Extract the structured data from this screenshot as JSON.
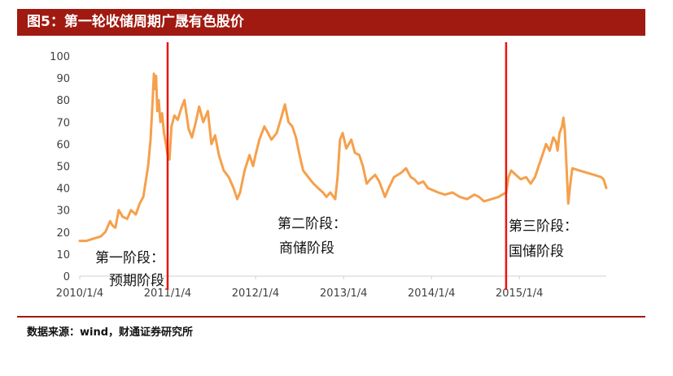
{
  "title": "图5：第一轮收储周期广晟有色股价",
  "source": "数据来源：wind，财通证券研究所",
  "colors": {
    "title_bg": "#a01a11",
    "line": "#f5a04c",
    "divider": "#e8160c"
  },
  "chart_data": {
    "type": "line",
    "title": "",
    "xlabel": "",
    "ylabel": "",
    "ylim": [
      0,
      100
    ],
    "yticks": [
      "0",
      "10",
      "20",
      "30",
      "40",
      "50",
      "60",
      "70",
      "80",
      "90",
      "100"
    ],
    "xticks": [
      "2010/1/4",
      "2011/1/4",
      "2012/1/4",
      "2013/1/4",
      "2014/1/4",
      "2015/1/4"
    ],
    "dividers": [
      "2011-01-04",
      "2014-11-10"
    ],
    "annotations": [
      "第一阶段：",
      "预期阶段",
      "第二阶段：",
      "商储阶段",
      "第三阶段：",
      "国储阶段"
    ],
    "series": [
      {
        "points": [
          [
            "2010-01-04",
            16
          ],
          [
            "2010-02-01",
            16
          ],
          [
            "2010-03-01",
            17
          ],
          [
            "2010-04-01",
            18
          ],
          [
            "2010-04-20",
            20
          ],
          [
            "2010-05-10",
            25
          ],
          [
            "2010-05-20",
            23
          ],
          [
            "2010-06-01",
            22
          ],
          [
            "2010-06-15",
            30
          ],
          [
            "2010-07-01",
            27
          ],
          [
            "2010-07-20",
            26
          ],
          [
            "2010-08-05",
            30
          ],
          [
            "2010-08-25",
            28
          ],
          [
            "2010-09-10",
            33
          ],
          [
            "2010-09-25",
            36
          ],
          [
            "2010-10-08",
            45
          ],
          [
            "2010-10-15",
            50
          ],
          [
            "2010-10-25",
            62
          ],
          [
            "2010-11-03",
            80
          ],
          [
            "2010-11-08",
            92
          ],
          [
            "2010-11-12",
            85
          ],
          [
            "2010-11-17",
            91
          ],
          [
            "2010-11-22",
            75
          ],
          [
            "2010-11-28",
            80
          ],
          [
            "2010-12-05",
            70
          ],
          [
            "2010-12-12",
            74
          ],
          [
            "2010-12-20",
            65
          ],
          [
            "2010-12-28",
            60
          ],
          [
            "2011-01-04",
            55
          ],
          [
            "2011-01-12",
            53
          ],
          [
            "2011-01-20",
            68
          ],
          [
            "2011-02-01",
            73
          ],
          [
            "2011-02-15",
            71
          ],
          [
            "2011-03-01",
            76
          ],
          [
            "2011-03-15",
            80
          ],
          [
            "2011-04-01",
            67
          ],
          [
            "2011-04-15",
            63
          ],
          [
            "2011-05-01",
            70
          ],
          [
            "2011-05-15",
            77
          ],
          [
            "2011-06-01",
            70
          ],
          [
            "2011-06-20",
            75
          ],
          [
            "2011-07-05",
            60
          ],
          [
            "2011-07-20",
            64
          ],
          [
            "2011-08-05",
            55
          ],
          [
            "2011-08-25",
            48
          ],
          [
            "2011-09-15",
            45
          ],
          [
            "2011-10-05",
            40
          ],
          [
            "2011-10-20",
            35
          ],
          [
            "2011-11-01",
            38
          ],
          [
            "2011-11-20",
            48
          ],
          [
            "2011-12-10",
            55
          ],
          [
            "2011-12-25",
            50
          ],
          [
            "2012-01-04",
            55
          ],
          [
            "2012-01-20",
            62
          ],
          [
            "2012-02-10",
            68
          ],
          [
            "2012-02-25",
            65
          ],
          [
            "2012-03-10",
            62
          ],
          [
            "2012-04-01",
            65
          ],
          [
            "2012-04-20",
            72
          ],
          [
            "2012-05-05",
            78
          ],
          [
            "2012-05-20",
            70
          ],
          [
            "2012-06-05",
            68
          ],
          [
            "2012-06-20",
            63
          ],
          [
            "2012-07-05",
            55
          ],
          [
            "2012-07-20",
            48
          ],
          [
            "2012-08-10",
            45
          ],
          [
            "2012-09-01",
            42
          ],
          [
            "2012-09-20",
            40
          ],
          [
            "2012-10-10",
            38
          ],
          [
            "2012-10-25",
            36
          ],
          [
            "2012-11-10",
            38
          ],
          [
            "2012-11-30",
            35
          ],
          [
            "2012-12-10",
            45
          ],
          [
            "2012-12-20",
            62
          ],
          [
            "2012-12-31",
            65
          ],
          [
            "2013-01-15",
            58
          ],
          [
            "2013-02-05",
            62
          ],
          [
            "2013-02-20",
            56
          ],
          [
            "2013-03-10",
            55
          ],
          [
            "2013-03-25",
            50
          ],
          [
            "2013-04-10",
            42
          ],
          [
            "2013-04-25",
            44
          ],
          [
            "2013-05-15",
            46
          ],
          [
            "2013-06-01",
            43
          ],
          [
            "2013-06-25",
            36
          ],
          [
            "2013-07-10",
            40
          ],
          [
            "2013-08-01",
            45
          ],
          [
            "2013-09-01",
            47
          ],
          [
            "2013-09-20",
            49
          ],
          [
            "2013-10-10",
            45
          ],
          [
            "2013-10-25",
            44
          ],
          [
            "2013-11-10",
            42
          ],
          [
            "2013-12-01",
            43
          ],
          [
            "2013-12-20",
            40
          ],
          [
            "2014-01-10",
            39
          ],
          [
            "2014-02-01",
            38
          ],
          [
            "2014-03-01",
            37
          ],
          [
            "2014-04-01",
            38
          ],
          [
            "2014-05-01",
            36
          ],
          [
            "2014-06-01",
            35
          ],
          [
            "2014-07-01",
            37
          ],
          [
            "2014-07-20",
            36
          ],
          [
            "2014-08-10",
            34
          ],
          [
            "2014-09-10",
            35
          ],
          [
            "2014-10-10",
            36
          ],
          [
            "2014-10-25",
            37
          ],
          [
            "2014-11-10",
            38
          ],
          [
            "2014-11-20",
            45
          ],
          [
            "2014-12-01",
            48
          ],
          [
            "2014-12-20",
            46
          ],
          [
            "2015-01-10",
            44
          ],
          [
            "2015-02-01",
            45
          ],
          [
            "2015-02-20",
            42
          ],
          [
            "2015-03-10",
            45
          ],
          [
            "2015-03-25",
            50
          ],
          [
            "2015-04-10",
            55
          ],
          [
            "2015-04-25",
            60
          ],
          [
            "2015-05-10",
            57
          ],
          [
            "2015-05-25",
            63
          ],
          [
            "2015-06-05",
            61
          ],
          [
            "2015-06-12",
            57
          ],
          [
            "2015-06-20",
            65
          ],
          [
            "2015-06-30",
            68
          ],
          [
            "2015-07-06",
            72
          ],
          [
            "2015-07-12",
            66
          ],
          [
            "2015-07-20",
            47
          ],
          [
            "2015-07-26",
            33
          ],
          [
            "2015-07-30",
            37
          ],
          [
            "2015-08-06",
            44
          ],
          [
            "2015-08-12",
            49
          ],
          [
            "2015-09-10",
            48
          ],
          [
            "2015-10-10",
            47
          ],
          [
            "2015-11-10",
            46
          ],
          [
            "2015-12-10",
            45
          ],
          [
            "2015-12-20",
            44
          ],
          [
            "2015-12-31",
            40
          ]
        ]
      }
    ]
  }
}
